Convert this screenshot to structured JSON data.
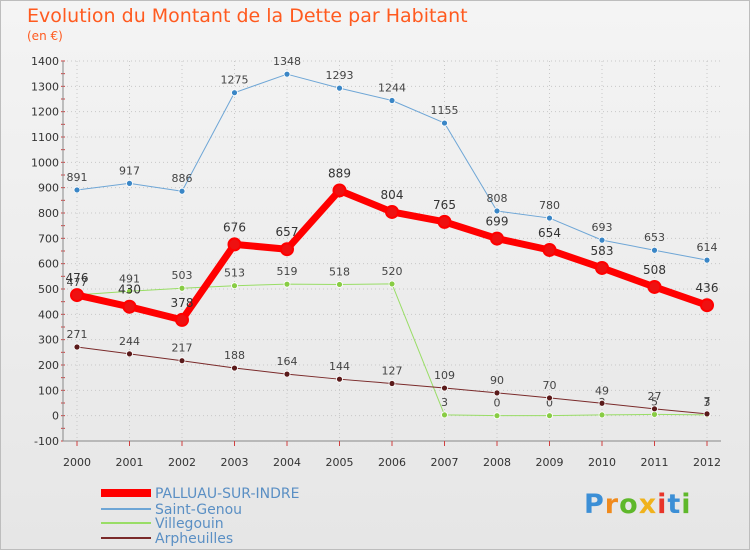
{
  "title": "Evolution du Montant de la Dette par Habitant",
  "subtitle": "(en €)",
  "logo": "Proxiti",
  "chart_data": {
    "type": "line",
    "title": "Evolution du Montant de la Dette par Habitant",
    "subtitle": "(en €)",
    "x": [
      "2000",
      "2001",
      "2002",
      "2003",
      "2004",
      "2005",
      "2006",
      "2007",
      "2008",
      "2009",
      "2010",
      "2011",
      "2012"
    ],
    "ylim": [
      -100,
      1400
    ],
    "yticks": [
      -100,
      0,
      100,
      200,
      300,
      400,
      500,
      600,
      700,
      800,
      900,
      1000,
      1100,
      1200,
      1300,
      1400
    ],
    "grid": true,
    "legend_position": "bottom-left",
    "series": [
      {
        "name": "PALLUAU-SUR-INDRE",
        "color": "#ff0000",
        "values": [
          476,
          430,
          378,
          676,
          657,
          889,
          804,
          765,
          699,
          654,
          583,
          508,
          436
        ],
        "labels": [
          "476",
          "430",
          "378",
          "676",
          "657",
          "889",
          "804",
          "765",
          "699",
          "654",
          "583",
          "508",
          "436"
        ]
      },
      {
        "name": "Saint-Genou",
        "color": "#6ea6d6",
        "values": [
          891,
          917,
          886,
          1275,
          1348,
          1293,
          1244,
          1155,
          808,
          780,
          693,
          653,
          614
        ],
        "labels": [
          "891",
          "917",
          "886",
          "1275",
          "1348",
          "1293",
          "1244",
          "1155",
          "808",
          "780",
          "693",
          "653",
          "614"
        ]
      },
      {
        "name": "Villegouin",
        "color": "#99dd66",
        "values": [
          477,
          491,
          503,
          513,
          519,
          518,
          520,
          3,
          0,
          0,
          3,
          5,
          3
        ],
        "labels": [
          "477",
          "491",
          "503",
          "513",
          "519",
          "518",
          "520",
          "3",
          "0",
          "0",
          "3",
          "5",
          "3"
        ]
      },
      {
        "name": "Arpheuilles",
        "color": "#7a2a2a",
        "values": [
          271,
          244,
          217,
          188,
          164,
          144,
          127,
          109,
          90,
          70,
          49,
          27,
          7
        ],
        "labels": [
          "271",
          "244",
          "217",
          "188",
          "164",
          "144",
          "127",
          "109",
          "90",
          "70",
          "49",
          "27",
          "7"
        ]
      }
    ]
  }
}
